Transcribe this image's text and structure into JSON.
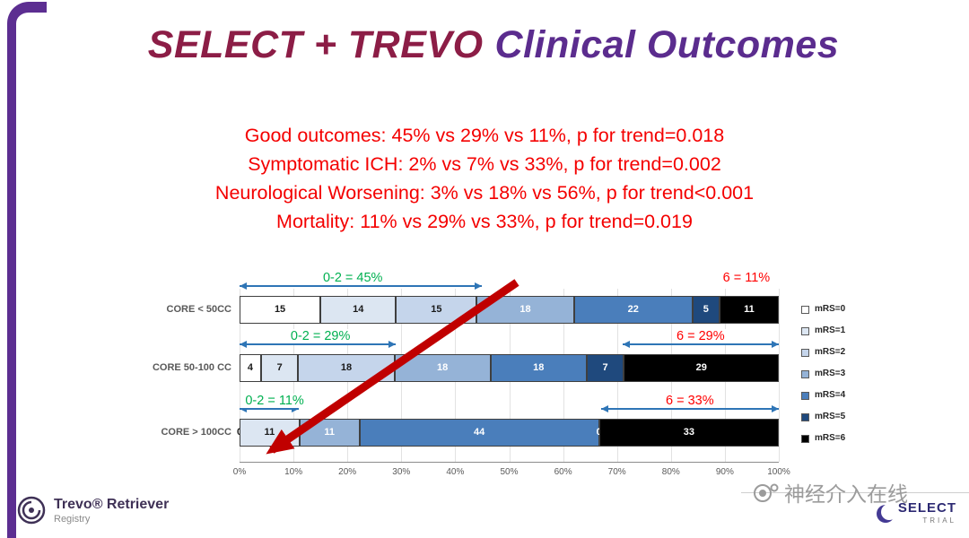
{
  "colors": {
    "accent_purple": "#5C2E91",
    "title_maroon": "#8C1D46",
    "title_purple": "#5B2C8E",
    "summary_red": "#F40000",
    "annotation_green": "#00B050",
    "annotation_red": "#FF0000",
    "range_arrow_blue": "#2E75B6",
    "trend_arrow_red": "#C00000"
  },
  "title": {
    "part1": "SELECT + TREVO",
    "part2": "Clinical Outcomes"
  },
  "summary": {
    "lines": [
      "Good outcomes: 45% vs 29% vs 11%, p for trend=0.018",
      "Symptomatic ICH: 2% vs 7% vs 33%, p for trend=0.002",
      "Neurological Worsening: 3% vs 18% vs 56%, p for trend<0.001",
      "Mortality: 11% vs 29% vs 33%, p for trend=0.019"
    ]
  },
  "chart_data": {
    "type": "bar",
    "orientation": "horizontal",
    "stacked": true,
    "unit": "percent",
    "categories": [
      "CORE < 50CC",
      "CORE 50-100 CC",
      "CORE > 100CC"
    ],
    "series": [
      {
        "name": "mRS=0",
        "color": "#FFFFFF",
        "values": [
          15,
          4,
          0
        ]
      },
      {
        "name": "mRS=1",
        "color": "#DCE6F2",
        "values": [
          14,
          7,
          11
        ]
      },
      {
        "name": "mRS=2",
        "color": "#C5D5EB",
        "values": [
          15,
          18,
          0
        ]
      },
      {
        "name": "mRS=3",
        "color": "#95B3D7",
        "values": [
          18,
          18,
          11
        ]
      },
      {
        "name": "mRS=4",
        "color": "#4A7EBB",
        "values": [
          22,
          18,
          44
        ]
      },
      {
        "name": "mRS=5",
        "color": "#1F497D",
        "values": [
          5,
          7,
          0
        ]
      },
      {
        "name": "mRS=6",
        "color": "#000000",
        "values": [
          11,
          29,
          33
        ]
      }
    ],
    "x_ticks": [
      "0%",
      "10%",
      "20%",
      "30%",
      "40%",
      "50%",
      "60%",
      "70%",
      "80%",
      "90%",
      "100%"
    ],
    "xlim": [
      0,
      100
    ],
    "grid": true,
    "legend_position": "right",
    "annotations": [
      {
        "row": 0,
        "label": "0-2 = 45%",
        "color": "#00B050",
        "from": 0,
        "to": 45,
        "label_at": 21
      },
      {
        "row": 0,
        "label": "6 = 11%",
        "color": "#FF0000",
        "from": null,
        "to": null,
        "label_at": 94
      },
      {
        "row": 1,
        "label": "0-2 = 29%",
        "color": "#00B050",
        "from": 0,
        "to": 29,
        "label_at": 15
      },
      {
        "row": 1,
        "label": "6 = 29%",
        "color": "#FF0000",
        "from": 71,
        "to": 100,
        "label_at": 85.5
      },
      {
        "row": 2,
        "label": "0-2 = 11%",
        "color": "#00B050",
        "from": 0,
        "to": 11,
        "label_at": 6.5
      },
      {
        "row": 2,
        "label": "6 = 33%",
        "color": "#FF0000",
        "from": 67,
        "to": 100,
        "label_at": 83.5
      }
    ]
  },
  "footer": {
    "trevo": {
      "name": "Trevo® Retriever",
      "sub": "Registry"
    },
    "watermark": "神经介入在线",
    "select": {
      "line1": "SELECT",
      "line2": "TRIAL"
    }
  }
}
